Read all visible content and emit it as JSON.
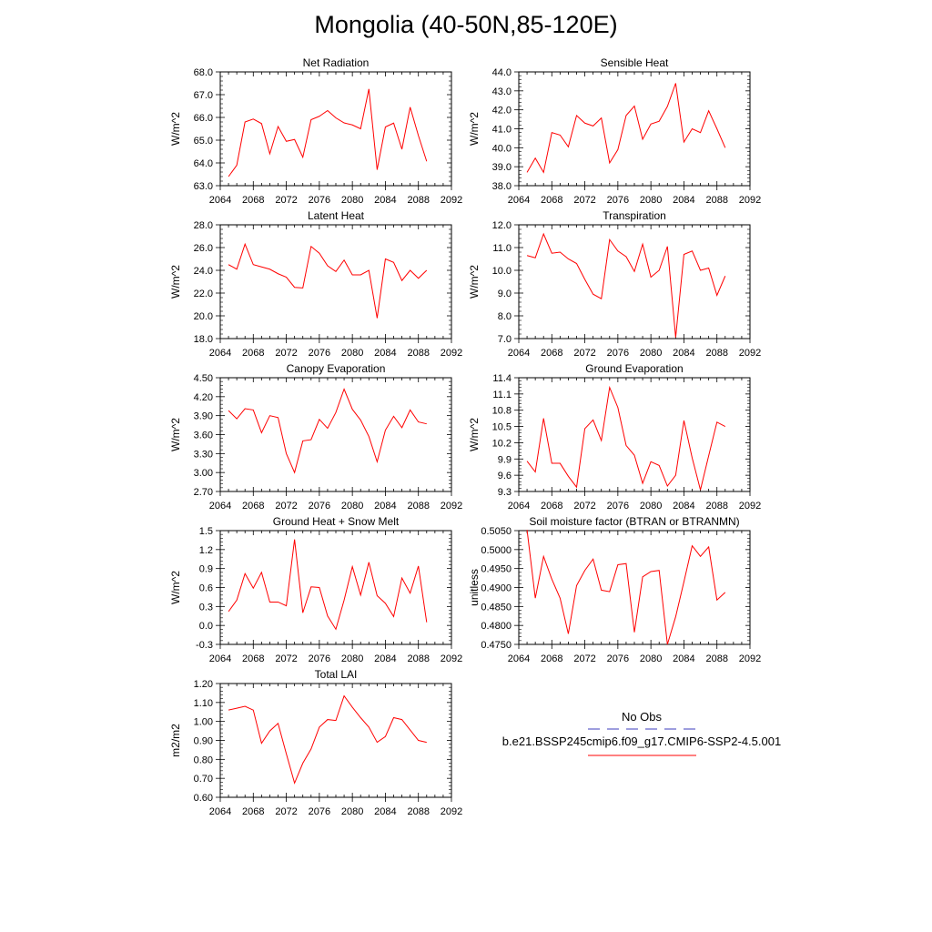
{
  "page_title": "Mongolia (40-50N,85-120E)",
  "colors": {
    "series": "#ff0000",
    "obs": "#3c3cbe",
    "frame": "#000000"
  },
  "legend": {
    "obs_label": "No Obs",
    "model_label": "b.e21.BSSP245cmip6.f09_g17.CMIP6-SSP2-4.5.001"
  },
  "chart_data": [
    {
      "type": "line",
      "title": "Net Radiation",
      "ylabel": "W/m^2",
      "xlim": [
        2064,
        2092
      ],
      "ylim": [
        63.0,
        68.0
      ],
      "decimals": 1,
      "xticks": [
        2064,
        2068,
        2072,
        2076,
        2080,
        2084,
        2088,
        2092
      ],
      "yticks": [
        63.0,
        64.0,
        65.0,
        66.0,
        67.0,
        68.0
      ],
      "x": [
        2065,
        2066,
        2067,
        2068,
        2069,
        2070,
        2071,
        2072,
        2073,
        2074,
        2075,
        2076,
        2077,
        2078,
        2079,
        2080,
        2081,
        2082,
        2083,
        2084,
        2085,
        2086,
        2087,
        2088,
        2089
      ],
      "series": [
        {
          "values": [
            63.4,
            63.9,
            65.8,
            65.93,
            65.73,
            64.4,
            65.6,
            64.95,
            65.03,
            64.25,
            65.9,
            66.05,
            66.3,
            65.98,
            65.76,
            65.67,
            65.5,
            67.25,
            63.7,
            65.58,
            65.75,
            64.6,
            66.45,
            65.2,
            64.07
          ]
        }
      ]
    },
    {
      "type": "line",
      "title": "Sensible Heat",
      "ylabel": "W/m^2",
      "xlim": [
        2064,
        2092
      ],
      "ylim": [
        38.0,
        44.0
      ],
      "decimals": 1,
      "xticks": [
        2064,
        2068,
        2072,
        2076,
        2080,
        2084,
        2088,
        2092
      ],
      "yticks": [
        38.0,
        39.0,
        40.0,
        41.0,
        42.0,
        43.0,
        44.0
      ],
      "x": [
        2065,
        2066,
        2067,
        2068,
        2069,
        2070,
        2071,
        2072,
        2073,
        2074,
        2075,
        2076,
        2077,
        2078,
        2079,
        2080,
        2081,
        2082,
        2083,
        2084,
        2085,
        2086,
        2087,
        2088,
        2089
      ],
      "series": [
        {
          "values": [
            38.7,
            39.45,
            38.7,
            40.8,
            40.67,
            40.05,
            41.7,
            41.3,
            41.15,
            41.57,
            39.2,
            39.9,
            41.7,
            42.2,
            40.45,
            41.25,
            41.4,
            42.18,
            43.4,
            40.3,
            41.0,
            40.8,
            41.95,
            41.0,
            40.0
          ]
        }
      ]
    },
    {
      "type": "line",
      "title": "Latent Heat",
      "ylabel": "W/m^2",
      "xlim": [
        2064,
        2092
      ],
      "ylim": [
        18.0,
        28.0
      ],
      "decimals": 1,
      "xticks": [
        2064,
        2068,
        2072,
        2076,
        2080,
        2084,
        2088,
        2092
      ],
      "yticks": [
        18.0,
        20.0,
        22.0,
        24.0,
        26.0,
        28.0
      ],
      "x": [
        2065,
        2066,
        2067,
        2068,
        2069,
        2070,
        2071,
        2072,
        2073,
        2074,
        2075,
        2076,
        2077,
        2078,
        2079,
        2080,
        2081,
        2082,
        2083,
        2084,
        2085,
        2086,
        2087,
        2088,
        2089
      ],
      "series": [
        {
          "values": [
            24.5,
            24.1,
            26.3,
            24.5,
            24.3,
            24.1,
            23.7,
            23.4,
            22.5,
            22.45,
            26.1,
            25.5,
            24.4,
            23.9,
            24.9,
            23.6,
            23.6,
            24.0,
            19.8,
            25.0,
            24.7,
            23.1,
            24.0,
            23.3,
            24.0
          ]
        }
      ]
    },
    {
      "type": "line",
      "title": "Transpiration",
      "ylabel": "W/m^2",
      "xlim": [
        2064,
        2092
      ],
      "ylim": [
        7.0,
        12.0
      ],
      "decimals": 1,
      "xticks": [
        2064,
        2068,
        2072,
        2076,
        2080,
        2084,
        2088,
        2092
      ],
      "yticks": [
        7.0,
        8.0,
        9.0,
        10.0,
        11.0,
        12.0
      ],
      "x": [
        2065,
        2066,
        2067,
        2068,
        2069,
        2070,
        2071,
        2072,
        2073,
        2074,
        2075,
        2076,
        2077,
        2078,
        2079,
        2080,
        2081,
        2082,
        2083,
        2084,
        2085,
        2086,
        2087,
        2088,
        2089
      ],
      "series": [
        {
          "values": [
            10.65,
            10.55,
            11.6,
            10.75,
            10.8,
            10.5,
            10.3,
            9.6,
            8.95,
            8.75,
            11.35,
            10.85,
            10.6,
            9.95,
            11.15,
            9.7,
            10.0,
            11.05,
            7.05,
            10.7,
            10.85,
            10.0,
            10.1,
            8.9,
            9.75
          ]
        }
      ]
    },
    {
      "type": "line",
      "title": "Canopy Evaporation",
      "ylabel": "W/m^2",
      "xlim": [
        2064,
        2092
      ],
      "ylim": [
        2.7,
        4.5
      ],
      "decimals": 2,
      "xticks": [
        2064,
        2068,
        2072,
        2076,
        2080,
        2084,
        2088,
        2092
      ],
      "yticks": [
        2.7,
        3.0,
        3.3,
        3.6,
        3.9,
        4.2,
        4.5
      ],
      "x": [
        2065,
        2066,
        2067,
        2068,
        2069,
        2070,
        2071,
        2072,
        2073,
        2074,
        2075,
        2076,
        2077,
        2078,
        2079,
        2080,
        2081,
        2082,
        2083,
        2084,
        2085,
        2086,
        2087,
        2088,
        2089
      ],
      "series": [
        {
          "values": [
            3.98,
            3.85,
            4.01,
            3.99,
            3.63,
            3.9,
            3.87,
            3.3,
            3.0,
            3.5,
            3.52,
            3.84,
            3.7,
            3.95,
            4.32,
            4.0,
            3.83,
            3.57,
            3.17,
            3.67,
            3.89,
            3.71,
            3.99,
            3.8,
            3.77
          ]
        }
      ]
    },
    {
      "type": "line",
      "title": "Ground Evaporation",
      "ylabel": "W/m^2",
      "xlim": [
        2064,
        2092
      ],
      "ylim": [
        9.3,
        11.4
      ],
      "decimals": 1,
      "xticks": [
        2064,
        2068,
        2072,
        2076,
        2080,
        2084,
        2088,
        2092
      ],
      "yticks": [
        9.3,
        9.6,
        9.9,
        10.2,
        10.5,
        10.8,
        11.1,
        11.4
      ],
      "x": [
        2065,
        2066,
        2067,
        2068,
        2069,
        2070,
        2071,
        2072,
        2073,
        2074,
        2075,
        2076,
        2077,
        2078,
        2079,
        2080,
        2081,
        2082,
        2083,
        2084,
        2085,
        2086,
        2087,
        2088,
        2089
      ],
      "series": [
        {
          "values": [
            9.86,
            9.66,
            10.65,
            9.82,
            9.82,
            9.58,
            9.38,
            10.46,
            10.62,
            10.24,
            11.22,
            10.85,
            10.15,
            9.97,
            9.45,
            9.85,
            9.78,
            9.4,
            9.6,
            10.61,
            9.92,
            9.33,
            9.96,
            10.58,
            10.5
          ]
        }
      ]
    },
    {
      "type": "line",
      "title": "Ground Heat + Snow Melt",
      "ylabel": "W/m^2",
      "xlim": [
        2064,
        2092
      ],
      "ylim": [
        -0.3,
        1.5
      ],
      "decimals": 1,
      "xticks": [
        2064,
        2068,
        2072,
        2076,
        2080,
        2084,
        2088,
        2092
      ],
      "yticks": [
        -0.3,
        0.0,
        0.3,
        0.6,
        0.9,
        1.2,
        1.5
      ],
      "x": [
        2065,
        2066,
        2067,
        2068,
        2069,
        2070,
        2071,
        2072,
        2073,
        2074,
        2075,
        2076,
        2077,
        2078,
        2079,
        2080,
        2081,
        2082,
        2083,
        2084,
        2085,
        2086,
        2087,
        2088,
        2089
      ],
      "series": [
        {
          "values": [
            0.22,
            0.4,
            0.82,
            0.59,
            0.84,
            0.37,
            0.37,
            0.31,
            1.36,
            0.2,
            0.61,
            0.6,
            0.15,
            -0.06,
            0.4,
            0.93,
            0.48,
            1.0,
            0.47,
            0.35,
            0.14,
            0.75,
            0.51,
            0.94,
            0.05
          ]
        }
      ]
    },
    {
      "type": "line",
      "title": "Soil moisture factor (BTRAN or BTRANMN)",
      "ylabel": "unitless",
      "xlim": [
        2064,
        2092
      ],
      "ylim": [
        0.475,
        0.505
      ],
      "decimals": 4,
      "xticks": [
        2064,
        2068,
        2072,
        2076,
        2080,
        2084,
        2088,
        2092
      ],
      "yticks": [
        0.475,
        0.48,
        0.485,
        0.49,
        0.495,
        0.5,
        0.505
      ],
      "x": [
        2065,
        2066,
        2067,
        2068,
        2069,
        2070,
        2071,
        2072,
        2073,
        2074,
        2075,
        2076,
        2077,
        2078,
        2079,
        2080,
        2081,
        2082,
        2083,
        2084,
        2085,
        2086,
        2087,
        2088,
        2089
      ],
      "series": [
        {
          "values": [
            0.5052,
            0.4872,
            0.4982,
            0.4922,
            0.4872,
            0.4778,
            0.4905,
            0.4945,
            0.4975,
            0.4893,
            0.4889,
            0.496,
            0.4963,
            0.4782,
            0.4928,
            0.4942,
            0.4945,
            0.475,
            0.4823,
            0.4915,
            0.501,
            0.4982,
            0.5007,
            0.4867,
            0.4887
          ]
        }
      ]
    },
    {
      "type": "line",
      "title": "Total LAI",
      "ylabel": "m2/m2",
      "xlim": [
        2064,
        2092
      ],
      "ylim": [
        0.6,
        1.2
      ],
      "decimals": 2,
      "xticks": [
        2064,
        2068,
        2072,
        2076,
        2080,
        2084,
        2088,
        2092
      ],
      "yticks": [
        0.6,
        0.7,
        0.8,
        0.9,
        1.0,
        1.1,
        1.2
      ],
      "x": [
        2065,
        2066,
        2067,
        2068,
        2069,
        2070,
        2071,
        2072,
        2073,
        2074,
        2075,
        2076,
        2077,
        2078,
        2079,
        2080,
        2081,
        2082,
        2083,
        2084,
        2085,
        2086,
        2087,
        2088,
        2089
      ],
      "series": [
        {
          "values": [
            1.06,
            1.07,
            1.08,
            1.06,
            0.885,
            0.95,
            0.99,
            0.83,
            0.675,
            0.78,
            0.855,
            0.97,
            1.01,
            1.005,
            1.135,
            1.075,
            1.02,
            0.97,
            0.89,
            0.92,
            1.02,
            1.01,
            0.955,
            0.9,
            0.89
          ]
        }
      ]
    }
  ]
}
